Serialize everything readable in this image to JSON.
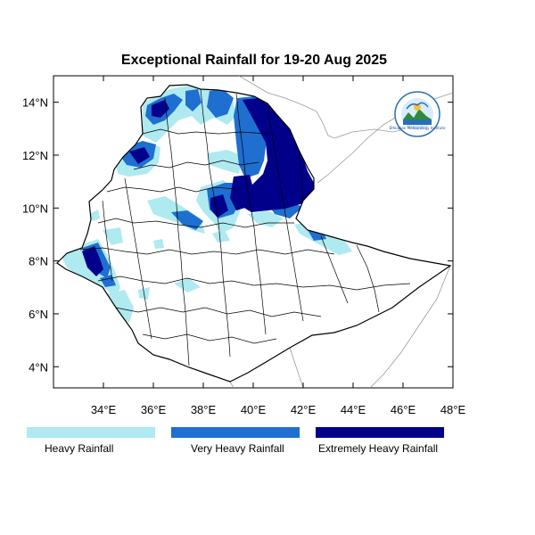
{
  "title": "Exceptional Rainfall for 19-20 Aug 2025",
  "map": {
    "region": "Ethiopia",
    "lon_range": [
      32.0,
      48.0
    ],
    "lat_range": [
      3.2,
      15.0
    ],
    "x_ticks": [
      "34°E",
      "36°E",
      "38°E",
      "40°E",
      "42°E",
      "44°E",
      "46°E",
      "48°E"
    ],
    "x_tick_values": [
      34,
      36,
      38,
      40,
      42,
      44,
      46,
      48
    ],
    "y_ticks": [
      "4°N",
      "6°N",
      "8°N",
      "10°N",
      "12°N",
      "14°N"
    ],
    "y_tick_values": [
      4,
      6,
      8,
      10,
      12,
      14
    ]
  },
  "legend": [
    {
      "label": "Heavy Rainfall",
      "color": "#aeeaf0"
    },
    {
      "label": "Very Heavy Rainfall",
      "color": "#1e6fd0"
    },
    {
      "label": "Extremely Heavy Rainfall",
      "color": "#00008b"
    }
  ],
  "logo": {
    "text": "Ethiopian Meteorology Institute",
    "icon": "ethiopian-meteorology-institute-logo"
  }
}
